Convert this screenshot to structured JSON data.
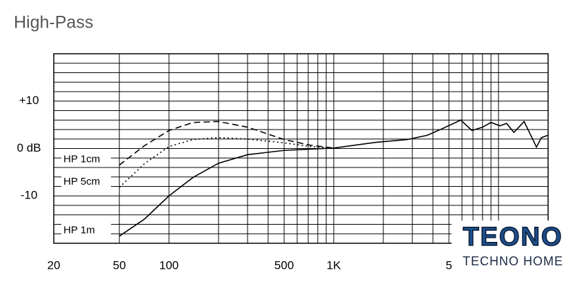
{
  "chart_data": {
    "type": "line",
    "title": "High-Pass",
    "xscale": "log",
    "xlim": [
      20,
      20000
    ],
    "ylim": [
      -20,
      20
    ],
    "xticks": [
      20,
      50,
      100,
      500,
      {
        "value": 1000,
        "label": "1K"
      },
      {
        "value": 5000,
        "label": "5"
      }
    ],
    "yticks": [
      {
        "value": 10,
        "label": "+10"
      },
      {
        "value": 0,
        "label": "0 dB"
      },
      -10
    ],
    "xgrid": [
      20,
      50,
      100,
      200,
      300,
      400,
      500,
      600,
      700,
      800,
      900,
      1000,
      2000,
      3000,
      4000,
      5000,
      6000,
      7000,
      8000,
      9000,
      10000,
      20000
    ],
    "ygrid": [
      -20,
      -18,
      -16,
      -14,
      -12,
      -10,
      -8,
      -6,
      -4,
      -2,
      0,
      2,
      4,
      6,
      8,
      10,
      12,
      14,
      16,
      18,
      20
    ],
    "series": [
      {
        "name": "HP 1cm",
        "color": "#000000",
        "dash": "dashed",
        "x": [
          50,
          71,
          100,
          140,
          200,
          300,
          500,
          720,
          1000
        ],
        "values": [
          -3.5,
          0.6,
          3.8,
          5.5,
          5.7,
          4.5,
          1.9,
          0.7,
          0.1
        ]
      },
      {
        "name": "HP 5cm",
        "color": "#000000",
        "dash": "dotted",
        "x": [
          50,
          71,
          100,
          140,
          200,
          300,
          500,
          720,
          1000
        ],
        "values": [
          -8.2,
          -3.2,
          0.4,
          1.9,
          2.3,
          2.0,
          1.2,
          0.4,
          0.1
        ]
      },
      {
        "name": "HP 1m",
        "color": "#000000",
        "dash": "solid",
        "x": [
          50,
          71,
          100,
          140,
          200,
          300,
          500,
          1000,
          1800,
          2800,
          3700,
          4500,
          5900,
          6900,
          8000,
          9000,
          10200,
          11200,
          12400,
          14300,
          17000,
          18200,
          20000
        ],
        "values": [
          -18.5,
          -14.9,
          -10,
          -6.1,
          -3.1,
          -1.3,
          -0.4,
          0.1,
          1.3,
          1.9,
          2.8,
          4.1,
          6.0,
          3.8,
          4.5,
          5.5,
          4.8,
          5.3,
          3.4,
          5.7,
          0.3,
          2.3,
          2.8
        ]
      }
    ]
  },
  "watermark": {
    "title": "TEONO",
    "subtitle": "TECHNO HOME"
  }
}
